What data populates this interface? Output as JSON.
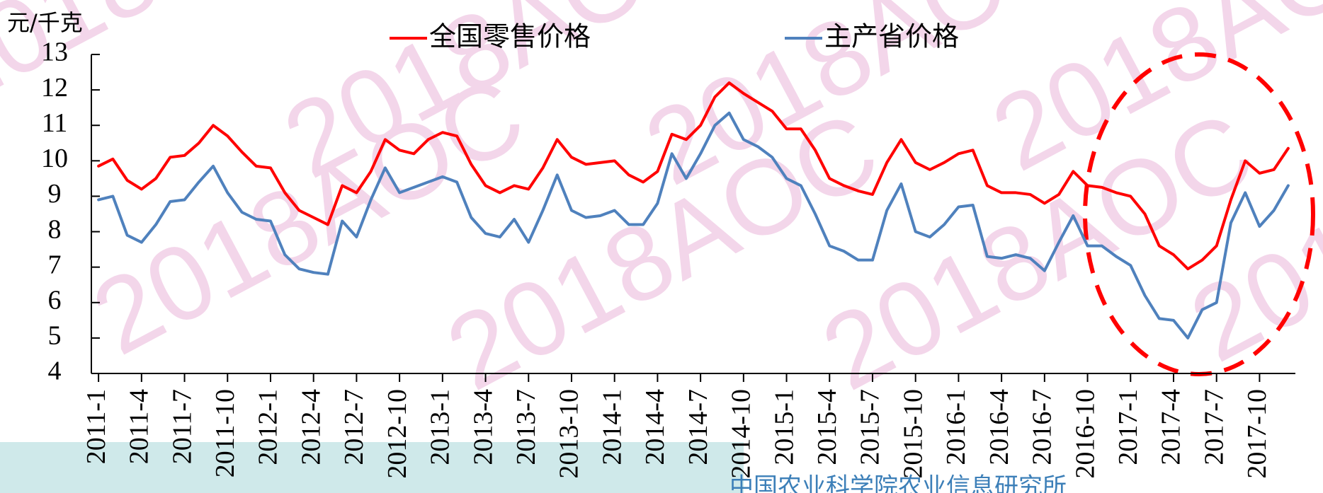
{
  "chart_data": {
    "type": "line",
    "y_axis_label": "元/千克",
    "watermark": "2018AOC",
    "footer": "中国农业科学院农业信息研究所",
    "categories": [
      "2011-1",
      null,
      null,
      "2011-4",
      null,
      null,
      "2011-7",
      null,
      null,
      "2011-10",
      null,
      null,
      "2012-1",
      null,
      null,
      "2012-4",
      null,
      null,
      "2012-7",
      null,
      null,
      "2012-10",
      null,
      null,
      "2013-1",
      null,
      null,
      "2013-4",
      null,
      null,
      "2013-7",
      null,
      null,
      "2013-10",
      null,
      null,
      "2014-1",
      null,
      null,
      "2014-4",
      null,
      null,
      "2014-7",
      null,
      null,
      "2014-10",
      null,
      null,
      "2015-1",
      null,
      null,
      "2015-4",
      null,
      null,
      "2015-7",
      null,
      null,
      "2015-10",
      null,
      null,
      "2016-1",
      null,
      null,
      "2016-4",
      null,
      null,
      "2016-7",
      null,
      null,
      "2016-10",
      null,
      null,
      "2017-1",
      null,
      null,
      "2017-4",
      null,
      null,
      "2017-7",
      null,
      null,
      "2017-10",
      null,
      null
    ],
    "series": [
      {
        "name": "全国零售价格",
        "color": "#ff0000",
        "values": [
          9.85,
          10.05,
          9.45,
          9.2,
          9.5,
          10.1,
          10.15,
          10.5,
          11.0,
          10.7,
          10.25,
          9.85,
          9.8,
          9.1,
          8.6,
          8.4,
          8.2,
          9.3,
          9.1,
          9.7,
          10.6,
          10.3,
          10.2,
          10.6,
          10.8,
          10.7,
          9.9,
          9.3,
          9.1,
          9.3,
          9.2,
          9.8,
          10.6,
          10.1,
          9.9,
          9.95,
          10.0,
          9.6,
          9.4,
          9.7,
          10.75,
          10.6,
          11.0,
          11.8,
          12.2,
          11.9,
          11.65,
          11.4,
          10.9,
          10.9,
          10.3,
          9.5,
          9.3,
          9.15,
          9.05,
          9.95,
          10.6,
          9.95,
          9.75,
          9.95,
          10.2,
          10.3,
          9.3,
          9.1,
          9.1,
          9.05,
          8.8,
          9.05,
          9.7,
          9.3,
          9.25,
          9.1,
          9.0,
          8.5,
          7.6,
          7.35,
          6.95,
          7.2,
          7.6,
          8.9,
          10.0,
          9.65,
          9.75,
          10.35
        ]
      },
      {
        "name": "主产省价格",
        "color": "#4f81bd",
        "values": [
          8.9,
          9.0,
          7.9,
          7.7,
          8.2,
          8.85,
          8.9,
          9.4,
          9.85,
          9.1,
          8.55,
          8.35,
          8.3,
          7.35,
          6.95,
          6.85,
          6.8,
          8.3,
          7.85,
          8.9,
          9.8,
          9.1,
          9.25,
          9.4,
          9.55,
          9.4,
          8.4,
          7.95,
          7.85,
          8.35,
          7.7,
          8.6,
          9.6,
          8.6,
          8.4,
          8.45,
          8.6,
          8.2,
          8.2,
          8.8,
          10.2,
          9.5,
          10.2,
          11.0,
          11.35,
          10.6,
          10.4,
          10.1,
          9.5,
          9.3,
          8.5,
          7.6,
          7.45,
          7.2,
          7.2,
          8.6,
          9.35,
          8.0,
          7.85,
          8.2,
          8.7,
          8.75,
          7.3,
          7.25,
          7.35,
          7.25,
          6.9,
          7.7,
          8.45,
          7.6,
          7.6,
          7.3,
          7.05,
          6.2,
          5.55,
          5.5,
          5.0,
          5.8,
          6.0,
          8.25,
          9.1,
          8.15,
          8.6,
          9.3
        ]
      }
    ],
    "ylim": [
      4,
      13
    ],
    "yticks": [
      4,
      5,
      6,
      7,
      8,
      9,
      10,
      11,
      12,
      13
    ],
    "legend": "top"
  }
}
